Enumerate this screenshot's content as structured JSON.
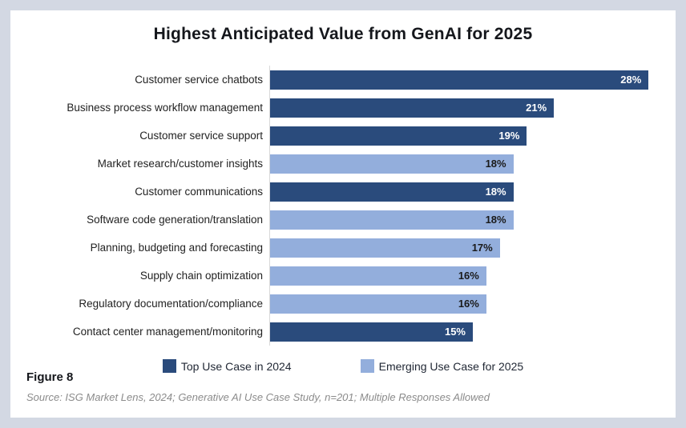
{
  "page": {
    "background_color": "#d3d8e3",
    "card_background_color": "#ffffff"
  },
  "title": "Highest Anticipated Value from GenAI for 2025",
  "chart_data": {
    "type": "bar",
    "orientation": "horizontal",
    "title": "Highest Anticipated Value from GenAI for 2025",
    "categories": [
      "Customer service chatbots",
      "Business process workflow management",
      "Customer service support",
      "Market research/customer insights",
      "Customer communications",
      "Software code generation/translation",
      "Planning, budgeting and forecasting",
      "Supply chain optimization",
      "Regulatory documentation/compliance",
      "Contact center management/monitoring"
    ],
    "values": [
      28,
      21,
      19,
      18,
      18,
      18,
      17,
      16,
      16,
      15
    ],
    "value_labels": [
      "28%",
      "21%",
      "19%",
      "18%",
      "18%",
      "18%",
      "17%",
      "16%",
      "16%",
      "15%"
    ],
    "series_by_row": [
      "top2024",
      "top2024",
      "top2024",
      "emerging2025",
      "top2024",
      "emerging2025",
      "emerging2025",
      "emerging2025",
      "emerging2025",
      "top2024"
    ],
    "colors": {
      "top2024": "#2a4b7c",
      "emerging2025": "#93aedc"
    },
    "value_text_colors": {
      "top2024": "#ffffff",
      "emerging2025": "#1a1a1a"
    },
    "xlim": [
      0,
      30
    ],
    "grid": false,
    "axis_line_color": "#d9d9d9",
    "legend_position": "bottom",
    "legend": [
      {
        "label": "Top Use Case in 2024",
        "color_key": "top2024"
      },
      {
        "label": "Emerging Use Case for 2025",
        "color_key": "emerging2025"
      }
    ]
  },
  "footer": {
    "figure_label": "Figure 8",
    "source": "Source: ISG Market Lens, 2024; Generative AI Use Case Study, n=201; Multiple Responses Allowed"
  }
}
